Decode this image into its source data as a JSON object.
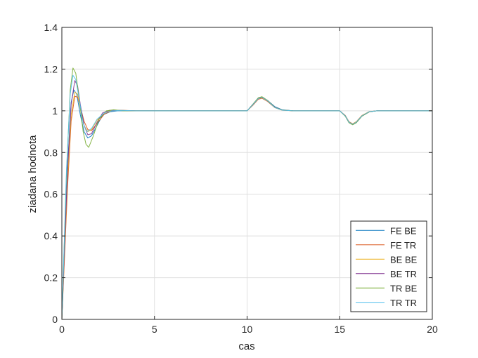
{
  "chart_data": {
    "type": "line",
    "title": "",
    "xlabel": "cas",
    "ylabel": "ziadana hodnota",
    "xlim": [
      0,
      20
    ],
    "ylim": [
      0,
      1.4
    ],
    "xticks": [
      0,
      5,
      10,
      15,
      20
    ],
    "xtick_labels": [
      "0",
      "5",
      "10",
      "15",
      "20"
    ],
    "yticks": [
      0,
      0.2,
      0.4,
      0.6,
      0.8,
      1,
      1.2,
      1.4
    ],
    "ytick_labels": [
      "0",
      "0.2",
      "0.4",
      "0.6",
      "0.8",
      "1",
      "1.2",
      "1.4"
    ],
    "grid": true,
    "legend_position": "bottom-right",
    "series": [
      {
        "name": "FE BE",
        "color": "#0072BD",
        "x": [
          0,
          0.3,
          0.5,
          0.65,
          0.8,
          1.0,
          1.2,
          1.4,
          1.6,
          1.9,
          2.2,
          2.6,
          3.0,
          4.0,
          10.0,
          10.3,
          10.6,
          10.8,
          11.1,
          11.5,
          11.9,
          12.5,
          13.5,
          15.0,
          15.3,
          15.5,
          15.7,
          15.9,
          16.2,
          16.6,
          17.0,
          18.0,
          20.0
        ],
        "y": [
          0,
          0.72,
          1.04,
          1.1,
          1.08,
          0.98,
          0.9,
          0.87,
          0.88,
          0.93,
          0.98,
          0.995,
          1.0,
          1.0,
          1.0,
          1.03,
          1.06,
          1.065,
          1.05,
          1.02,
          1.005,
          1.0,
          1.0,
          1.0,
          0.975,
          0.945,
          0.935,
          0.945,
          0.975,
          0.995,
          1.0,
          1.0,
          1.0
        ]
      },
      {
        "name": "FE TR",
        "color": "#D95319",
        "x": [
          0,
          0.3,
          0.5,
          0.7,
          0.85,
          1.0,
          1.2,
          1.4,
          1.6,
          1.9,
          2.3,
          2.7,
          3.2,
          4.0,
          10.0,
          10.3,
          10.6,
          10.8,
          11.1,
          11.5,
          11.9,
          12.5,
          13.5,
          15.0,
          15.3,
          15.5,
          15.7,
          15.9,
          16.2,
          16.6,
          17.0,
          18.0,
          20.0
        ],
        "y": [
          0,
          0.62,
          0.95,
          1.07,
          1.065,
          1.02,
          0.95,
          0.91,
          0.905,
          0.94,
          0.985,
          1.0,
          1.003,
          1.0,
          1.0,
          1.025,
          1.055,
          1.06,
          1.045,
          1.015,
          1.003,
          1.0,
          1.0,
          1.0,
          0.978,
          0.948,
          0.938,
          0.948,
          0.978,
          0.996,
          1.0,
          1.0,
          1.0
        ]
      },
      {
        "name": "BE BE",
        "color": "#EDB120",
        "x": [
          0,
          0.3,
          0.5,
          0.7,
          0.85,
          1.0,
          1.2,
          1.4,
          1.6,
          1.9,
          2.3,
          2.7,
          3.2,
          4.0,
          10.0,
          10.3,
          10.6,
          10.8,
          11.1,
          11.5,
          11.9,
          12.5,
          13.5,
          15.0,
          15.3,
          15.5,
          15.7,
          15.9,
          16.2,
          16.6,
          17.0,
          18.0,
          20.0
        ],
        "y": [
          0,
          0.66,
          0.98,
          1.09,
          1.08,
          1.01,
          0.93,
          0.9,
          0.91,
          0.955,
          0.99,
          1.003,
          1.002,
          1.0,
          1.0,
          1.028,
          1.058,
          1.063,
          1.048,
          1.016,
          1.003,
          1.0,
          1.0,
          1.0,
          0.976,
          0.946,
          0.937,
          0.947,
          0.977,
          0.996,
          1.0,
          1.0,
          1.0
        ]
      },
      {
        "name": "BE TR",
        "color": "#7E2F8E",
        "x": [
          0,
          0.3,
          0.5,
          0.7,
          0.85,
          1.0,
          1.2,
          1.4,
          1.6,
          1.9,
          2.2,
          2.6,
          3.0,
          4.0,
          10.0,
          10.3,
          10.6,
          10.8,
          11.1,
          11.5,
          11.9,
          12.5,
          13.5,
          15.0,
          15.3,
          15.5,
          15.7,
          15.9,
          16.2,
          16.6,
          17.0,
          18.0,
          20.0
        ],
        "y": [
          0,
          0.7,
          1.03,
          1.145,
          1.12,
          1.03,
          0.93,
          0.885,
          0.89,
          0.945,
          0.99,
          1.003,
          1.002,
          1.0,
          1.0,
          1.03,
          1.06,
          1.066,
          1.05,
          1.018,
          1.004,
          1.0,
          1.0,
          1.0,
          0.975,
          0.944,
          0.934,
          0.944,
          0.975,
          0.995,
          1.0,
          1.0,
          1.0
        ]
      },
      {
        "name": "TR BE",
        "color": "#77AC30",
        "x": [
          0,
          0.25,
          0.45,
          0.6,
          0.75,
          0.95,
          1.15,
          1.3,
          1.45,
          1.7,
          2.0,
          2.4,
          2.8,
          3.3,
          4.0,
          10.0,
          10.3,
          10.6,
          10.8,
          11.1,
          11.5,
          11.9,
          12.5,
          13.5,
          15.0,
          15.3,
          15.5,
          15.7,
          15.9,
          16.2,
          16.6,
          17.0,
          18.0,
          20.0
        ],
        "y": [
          0,
          0.7,
          1.1,
          1.205,
          1.18,
          1.05,
          0.9,
          0.84,
          0.825,
          0.88,
          0.96,
          1.0,
          1.005,
          1.0,
          1.0,
          1.0,
          1.03,
          1.062,
          1.068,
          1.05,
          1.017,
          1.004,
          1.0,
          1.0,
          1.0,
          0.974,
          0.943,
          0.933,
          0.943,
          0.974,
          0.995,
          1.0,
          1.0,
          1.0
        ]
      },
      {
        "name": "TR TR",
        "color": "#4DBEEE",
        "x": [
          0,
          0.25,
          0.45,
          0.6,
          0.75,
          0.95,
          1.15,
          1.35,
          1.6,
          1.9,
          2.3,
          2.7,
          3.2,
          4.0,
          10.0,
          10.3,
          10.6,
          10.8,
          11.1,
          11.5,
          11.9,
          12.5,
          13.5,
          15.0,
          15.3,
          15.5,
          15.7,
          15.9,
          16.2,
          16.6,
          17.0,
          18.0,
          20.0
        ],
        "y": [
          0,
          0.72,
          1.08,
          1.17,
          1.15,
          1.05,
          0.94,
          0.9,
          0.915,
          0.96,
          0.99,
          1.0,
          1.002,
          1.0,
          1.0,
          1.028,
          1.058,
          1.064,
          1.048,
          1.016,
          1.003,
          1.0,
          1.0,
          1.0,
          0.976,
          0.946,
          0.936,
          0.946,
          0.976,
          0.996,
          1.0,
          1.0,
          1.0
        ]
      }
    ]
  }
}
